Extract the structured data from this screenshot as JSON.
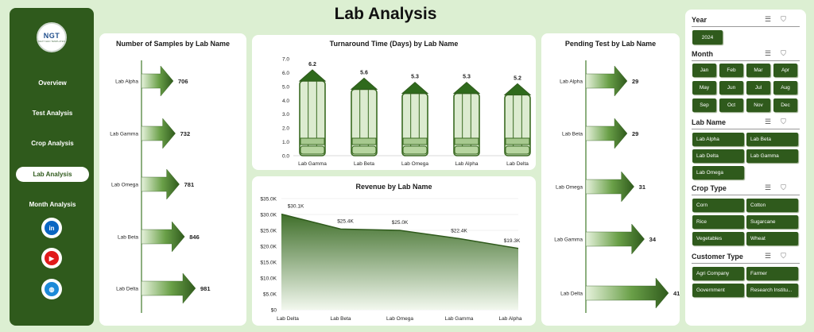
{
  "title": "Lab Analysis",
  "logo": {
    "text": "NGT",
    "sub": "NEXT GEN TEMPLATES"
  },
  "nav": [
    "Overview",
    "Test Analysis",
    "Crop Analysis",
    "Lab Analysis",
    "Month Analysis"
  ],
  "nav_active": 3,
  "social": [
    {
      "icon": "linkedin-icon",
      "label": "in",
      "color": "#0a66c2"
    },
    {
      "icon": "youtube-icon",
      "label": "▶",
      "color": "#e01a1a"
    },
    {
      "icon": "globe-icon",
      "label": "◍",
      "color": "#1c8ad8"
    }
  ],
  "samples": {
    "title": "Number of Samples by Lab Name",
    "labels": [
      "Lab Alpha",
      "Lab Gamma",
      "Lab Omega",
      "Lab Beta",
      "Lab Delta"
    ],
    "values": [
      706,
      732,
      781,
      846,
      981
    ]
  },
  "turnaround": {
    "title": "Turnaround Time (Days) by Lab Name",
    "labels": [
      "Lab Gamma",
      "Lab Beta",
      "Lab Omega",
      "Lab Alpha",
      "Lab Delta"
    ],
    "values": [
      6.2,
      5.6,
      5.3,
      5.3,
      5.2
    ],
    "ticks": [
      "0.0",
      "1.0",
      "2.0",
      "3.0",
      "4.0",
      "5.0",
      "6.0",
      "7.0"
    ],
    "ymax": 7
  },
  "revenue": {
    "title": "Revenue by Lab Name",
    "labels": [
      "Lab Delta",
      "Lab Beta",
      "Lab Omega",
      "Lab Gamma",
      "Lab Alpha"
    ],
    "values": [
      30.1,
      25.4,
      25.0,
      22.4,
      19.3
    ],
    "value_labels": [
      "$30.1K",
      "$25.4K",
      "$25.0K",
      "$22.4K",
      "$19.3K"
    ],
    "ticks": [
      "$0",
      "$5.0K",
      "$10.0K",
      "$15.0K",
      "$20.0K",
      "$25.0K",
      "$30.0K",
      "$35.0K"
    ],
    "ymax": 35
  },
  "pending": {
    "title": "Pending Test by Lab Name",
    "labels": [
      "Lab Alpha",
      "Lab Beta",
      "Lab Omega",
      "Lab Gamma",
      "Lab Delta"
    ],
    "values": [
      29,
      29,
      31,
      34,
      41
    ]
  },
  "chart_data": [
    {
      "type": "bar",
      "title": "Number of Samples by Lab Name",
      "categories": [
        "Lab Alpha",
        "Lab Gamma",
        "Lab Omega",
        "Lab Beta",
        "Lab Delta"
      ],
      "values": [
        706,
        732,
        781,
        846,
        981
      ]
    },
    {
      "type": "bar",
      "title": "Turnaround Time (Days) by Lab Name",
      "categories": [
        "Lab Gamma",
        "Lab Beta",
        "Lab Omega",
        "Lab Alpha",
        "Lab Delta"
      ],
      "values": [
        6.2,
        5.6,
        5.3,
        5.3,
        5.2
      ],
      "ylim": [
        0,
        7
      ]
    },
    {
      "type": "area",
      "title": "Revenue by Lab Name",
      "categories": [
        "Lab Delta",
        "Lab Beta",
        "Lab Omega",
        "Lab Gamma",
        "Lab Alpha"
      ],
      "values": [
        30100,
        25400,
        25000,
        22400,
        19300
      ],
      "ylim": [
        0,
        35000
      ]
    },
    {
      "type": "bar",
      "title": "Pending Test by Lab Name",
      "categories": [
        "Lab Alpha",
        "Lab Beta",
        "Lab Omega",
        "Lab Gamma",
        "Lab Delta"
      ],
      "values": [
        29,
        29,
        31,
        34,
        41
      ]
    }
  ],
  "slicers": {
    "year": {
      "title": "Year",
      "items": [
        "2024"
      ]
    },
    "month": {
      "title": "Month",
      "items": [
        "Jan",
        "Feb",
        "Mar",
        "Apr",
        "May",
        "Jun",
        "Jul",
        "Aug",
        "Sep",
        "Oct",
        "Nov",
        "Dec"
      ]
    },
    "lab": {
      "title": "Lab Name",
      "items": [
        "Lab Alpha",
        "Lab Beta",
        "Lab Delta",
        "Lab Gamma",
        "Lab Omega"
      ]
    },
    "crop": {
      "title": "Crop Type",
      "items": [
        "Corn",
        "Cotton",
        "Rice",
        "Sugarcane",
        "Vegetables",
        "Wheat"
      ]
    },
    "customer": {
      "title": "Customer Type",
      "items": [
        "Agri Company",
        "Farmer",
        "Government",
        "Research Institu..."
      ]
    }
  },
  "colors": {
    "dark_green": "#2f5a1c",
    "accent": "#3f7a2a",
    "bg": "#dcefd2"
  }
}
